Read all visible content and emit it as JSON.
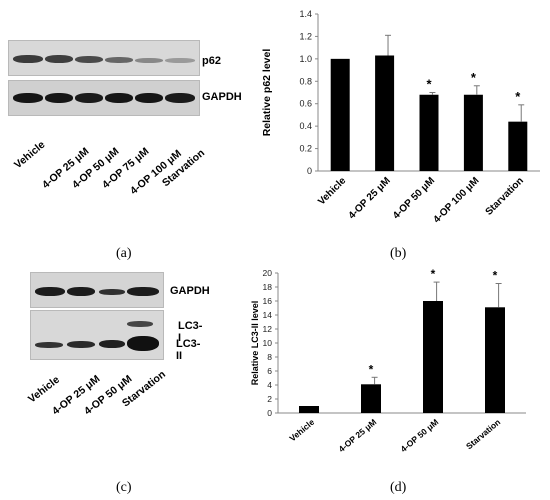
{
  "panels": {
    "a": {
      "tag": "(a)",
      "blot_labels": [
        "p62",
        "GAPDH"
      ],
      "lanes": [
        "Vehicle",
        "4-OP 25 μM",
        "4-OP 50 μM",
        "4-OP 75 μM",
        "4-OP 100 μM",
        "Starvation"
      ]
    },
    "b": {
      "tag": "(b)"
    },
    "c": {
      "tag": "(c)",
      "blot_labels": [
        "GAPDH",
        "LC3-I",
        "LC3-II"
      ],
      "lanes": [
        "Vehicle",
        "4-OP 25 μM",
        "4-OP 50 μM",
        "Starvation"
      ]
    },
    "d": {
      "tag": "(d)"
    }
  },
  "chart_data": [
    {
      "id": "b",
      "type": "bar",
      "categories": [
        "Vehicle",
        "4-OP 25 μM",
        "4-OP 50 μM",
        "4-OP 100 μM",
        "Starvation"
      ],
      "values": [
        1.0,
        1.03,
        0.68,
        0.68,
        0.44
      ],
      "errors": [
        0,
        0.18,
        0.02,
        0.08,
        0.15
      ],
      "significant": [
        false,
        false,
        true,
        true,
        true
      ],
      "significance_marker": "*",
      "ylabel": "Relative p62 level",
      "ylim": [
        0,
        1.4
      ],
      "yticks": [
        "0",
        "0.2",
        "0.4",
        "0.6",
        "0.8",
        "1.0",
        "1.2",
        "1.4"
      ],
      "ytick_values": [
        0,
        0.2,
        0.4,
        0.6,
        0.8,
        1.0,
        1.2,
        1.4
      ],
      "grid": false,
      "bar_color": "#000000"
    },
    {
      "id": "d",
      "type": "bar",
      "categories": [
        "Vehicle",
        "4-OP 25 μM",
        "4-OP 50 μM",
        "Starvation"
      ],
      "values": [
        1.0,
        4.1,
        16.0,
        15.1
      ],
      "errors": [
        0,
        1.0,
        2.7,
        3.4
      ],
      "significant": [
        false,
        true,
        true,
        true
      ],
      "significance_marker": "*",
      "ylabel": "Relative LC3-II level",
      "ylim": [
        0,
        20
      ],
      "yticks": [
        "0",
        "2",
        "4",
        "6",
        "8",
        "10",
        "12",
        "14",
        "16",
        "18",
        "20"
      ],
      "ytick_values": [
        0,
        2,
        4,
        6,
        8,
        10,
        12,
        14,
        16,
        18,
        20
      ],
      "grid": false,
      "bar_color": "#000000"
    }
  ]
}
